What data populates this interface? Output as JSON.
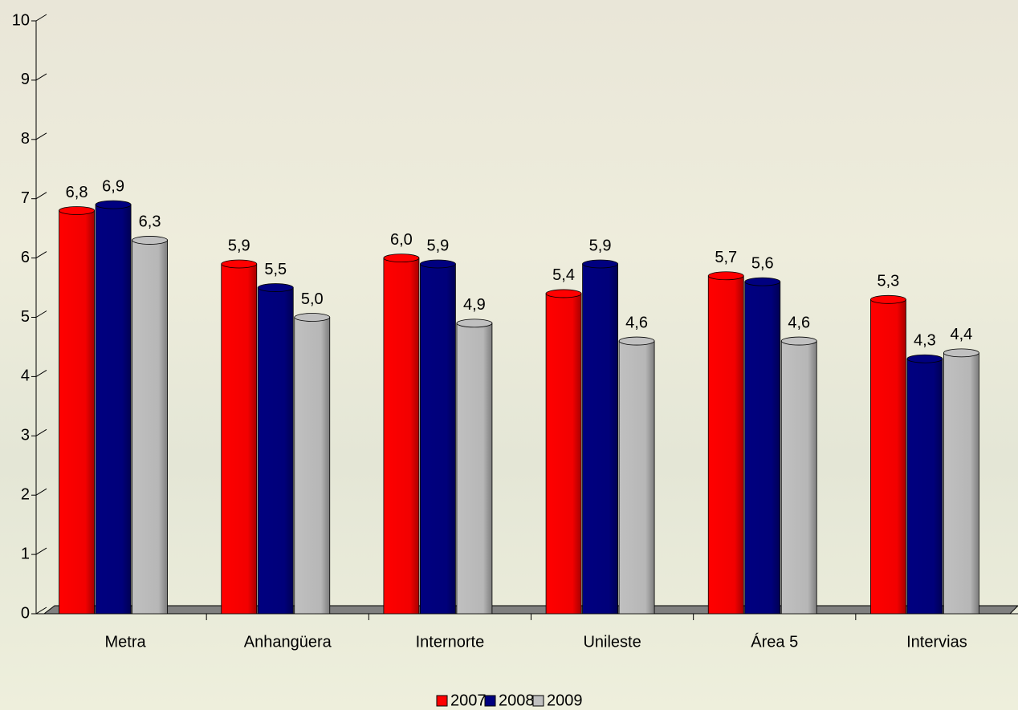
{
  "chart_data": {
    "type": "bar",
    "categories": [
      "Metra",
      "Anhangüera",
      "Internorte",
      "Unileste",
      "Área 5",
      "Intervias"
    ],
    "series": [
      {
        "name": "2007",
        "color": "#ff0000",
        "values": [
          6.8,
          5.9,
          6.0,
          5.4,
          5.7,
          5.3
        ],
        "value_labels": [
          "6,8",
          "5,9",
          "6,0",
          "5,4",
          "5,7",
          "5,3"
        ]
      },
      {
        "name": "2008",
        "color": "#000080",
        "values": [
          6.9,
          5.5,
          5.9,
          5.9,
          5.6,
          4.3
        ],
        "value_labels": [
          "6,9",
          "5,5",
          "5,9",
          "5,9",
          "5,6",
          "4,3"
        ]
      },
      {
        "name": "2009",
        "color": "#c0c0c0",
        "values": [
          6.3,
          5.0,
          4.9,
          4.6,
          4.6,
          4.4
        ],
        "value_labels": [
          "6,3",
          "5,0",
          "4,9",
          "4,6",
          "4,6",
          "4,4"
        ]
      }
    ],
    "ylim": [
      0,
      10
    ],
    "yticks": [
      0,
      1,
      2,
      3,
      4,
      5,
      6,
      7,
      8,
      9,
      10
    ],
    "legend": "bottom"
  }
}
